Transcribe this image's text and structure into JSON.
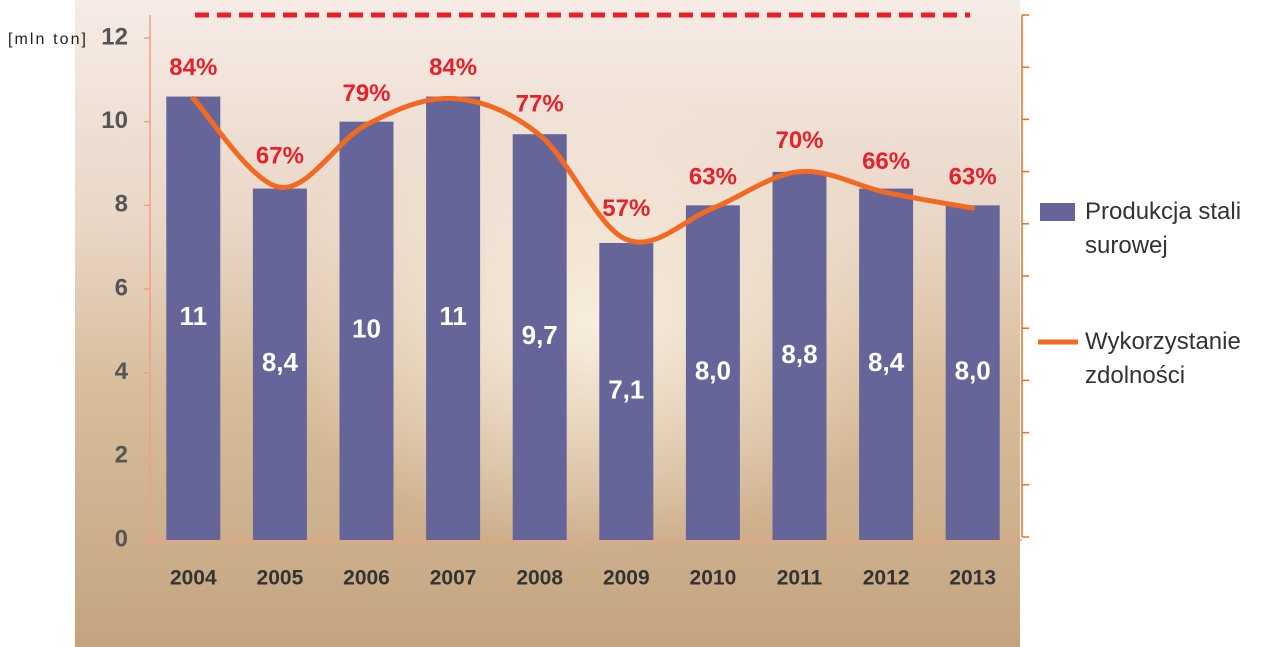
{
  "chart_data": {
    "type": "bar-line",
    "y_unit_label": "[mln ton]",
    "categories": [
      "2004",
      "2005",
      "2006",
      "2007",
      "2008",
      "2009",
      "2010",
      "2011",
      "2012",
      "2013"
    ],
    "series": [
      {
        "name": "Produkcja stali surowej",
        "type": "bar",
        "color": "#65659a",
        "values": [
          10.6,
          8.4,
          10.0,
          10.6,
          9.7,
          7.1,
          8.0,
          8.8,
          8.4,
          8.0
        ],
        "value_labels": [
          "11",
          "8,4",
          "10",
          "11",
          "9,7",
          "7,1",
          "8,0",
          "8,8",
          "8,4",
          "8,0"
        ]
      },
      {
        "name": "Wykorzystanie zdolności",
        "type": "line",
        "axis": "y2",
        "color": "#f26a21",
        "values": [
          84,
          67,
          79,
          84,
          77,
          57,
          63,
          70,
          66,
          63
        ],
        "value_labels": [
          "84%",
          "67%",
          "79%",
          "84%",
          "77%",
          "57%",
          "63%",
          "70%",
          "66%",
          "63%"
        ]
      }
    ],
    "ylim": [
      0,
      12
    ],
    "yticks": [
      0,
      2,
      4,
      6,
      8,
      10,
      12
    ],
    "y2lim": [
      0,
      100
    ],
    "y2ticks": [
      0,
      10,
      20,
      30,
      40,
      50,
      60,
      70,
      80,
      90,
      100
    ],
    "legend": "right"
  }
}
